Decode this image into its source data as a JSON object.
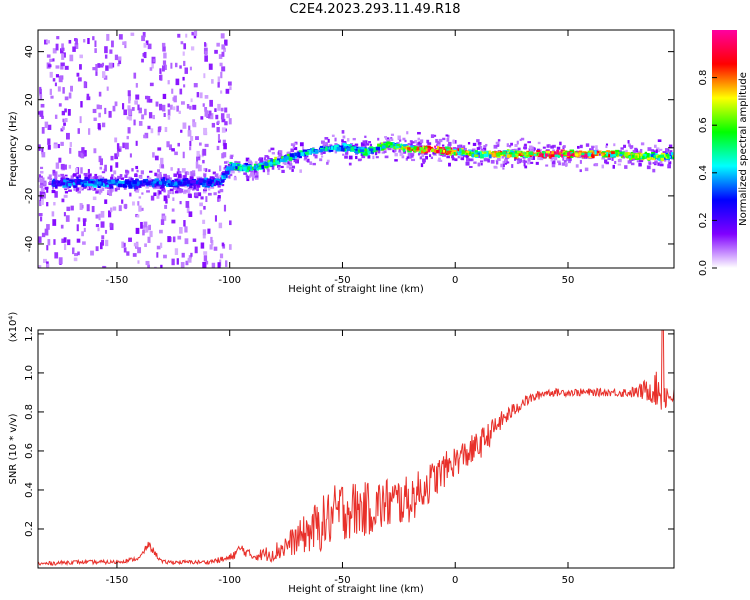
{
  "title": "C2E4.2023.293.11.49.R18",
  "chart_data": [
    {
      "type": "heatmap",
      "xlabel": "Height of straight line (km)",
      "ylabel": "Frequency (Hz)",
      "xlim": [
        -185,
        97
      ],
      "ylim": [
        -50,
        49
      ],
      "xticks": [
        -150,
        -100,
        -50,
        0,
        50
      ],
      "yticks": [
        -40,
        -20,
        0,
        20,
        40
      ],
      "colorbar": {
        "label": "Normalized spectral amplitude",
        "range": [
          0,
          1
        ],
        "ticks": [
          "0.0",
          "0.2",
          "0.4",
          "0.6",
          "0.8"
        ],
        "tick_values": [
          0,
          0.2,
          0.4,
          0.6,
          0.8
        ],
        "colormap": [
          "#ffffff",
          "#8000ff",
          "#0000ff",
          "#00ffff",
          "#00ff00",
          "#ffff00",
          "#ff0000",
          "#ff00a0"
        ]
      },
      "ridge": {
        "x": [
          -178,
          -160,
          -140,
          -120,
          -105,
          -100,
          -90,
          -80,
          -70,
          -60,
          -50,
          -40,
          -30,
          -20,
          -10,
          0,
          10,
          30,
          50,
          70,
          85,
          95
        ],
        "freq_hz": [
          -14,
          -14,
          -14,
          -14,
          -14,
          -7,
          -8,
          -5,
          -2,
          0,
          1,
          -1,
          2,
          0,
          0,
          -1,
          -2,
          -2,
          -2,
          -2,
          -3,
          -3
        ],
        "amplitude": [
          0.3,
          0.35,
          0.3,
          0.32,
          0.3,
          0.45,
          0.5,
          0.55,
          0.45,
          0.4,
          0.45,
          0.5,
          0.55,
          0.7,
          0.9,
          0.7,
          0.6,
          0.75,
          0.85,
          0.7,
          0.6,
          0.55
        ]
      }
    },
    {
      "type": "line",
      "xlabel": "Height of straight line (km)",
      "ylabel": "SNR (10 * v/v)",
      "scale_label": "(x10⁴)",
      "xlim": [
        -185,
        97
      ],
      "ylim": [
        0,
        1.22
      ],
      "xticks": [
        -150,
        -100,
        -50,
        0,
        50
      ],
      "yticks": [
        0.2,
        0.4,
        0.6,
        0.8,
        1.0,
        1.2
      ],
      "ytick_labels": [
        "0.2",
        "0.4",
        "0.6",
        "0.8",
        "1.0",
        "1.2"
      ],
      "series": [
        {
          "name": "SNR",
          "color": "#e8302a",
          "x": [
            -185,
            -170,
            -150,
            -140,
            -136,
            -130,
            -110,
            -100,
            -95,
            -90,
            -80,
            -70,
            -60,
            -50,
            -40,
            -30,
            -20,
            -10,
            0,
            10,
            20,
            30,
            40,
            50,
            60,
            70,
            80,
            88,
            92,
            95
          ],
          "y": [
            0.02,
            0.03,
            0.03,
            0.05,
            0.12,
            0.03,
            0.03,
            0.05,
            0.1,
            0.06,
            0.08,
            0.15,
            0.22,
            0.3,
            0.3,
            0.33,
            0.35,
            0.45,
            0.55,
            0.62,
            0.75,
            0.85,
            0.9,
            0.9,
            0.9,
            0.9,
            0.9,
            0.92,
            0.9,
            0.88
          ],
          "noise": [
            0.01,
            0.01,
            0.01,
            0.01,
            0.02,
            0.01,
            0.01,
            0.02,
            0.03,
            0.02,
            0.05,
            0.08,
            0.14,
            0.16,
            0.14,
            0.14,
            0.12,
            0.1,
            0.08,
            0.08,
            0.05,
            0.03,
            0.02,
            0.02,
            0.02,
            0.02,
            0.03,
            0.08,
            0.12,
            0.04
          ],
          "peak": {
            "x": 92,
            "y": 1.22
          }
        }
      ]
    }
  ]
}
